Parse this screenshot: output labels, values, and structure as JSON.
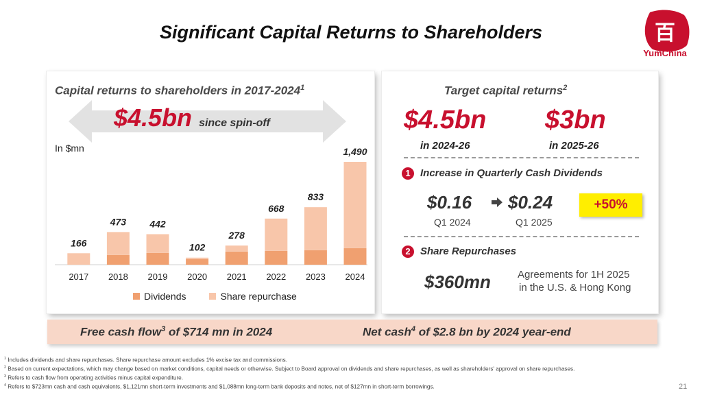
{
  "title": "Significant Capital Returns to Shareholders",
  "logo": {
    "text": "YumChina",
    "icon": "yum-china-seal-icon",
    "color": "#c8102e"
  },
  "left_panel": {
    "title": "Capital returns to shareholders in 2017-2024",
    "title_sup": "1",
    "total": "$4.5bn",
    "total_suffix": "since spin-off",
    "unit": "In $mn"
  },
  "chart_data": {
    "type": "bar",
    "stacked": true,
    "categories": [
      "2017",
      "2018",
      "2019",
      "2020",
      "2021",
      "2022",
      "2023",
      "2024"
    ],
    "totals": [
      166,
      473,
      442,
      102,
      278,
      668,
      833,
      1490
    ],
    "total_labels": [
      "166",
      "473",
      "442",
      "102",
      "278",
      "668",
      "833",
      "1,490"
    ],
    "series": [
      {
        "name": "Dividends",
        "color": "#f0a070",
        "values": [
          0,
          140,
          170,
          80,
          190,
          200,
          210,
          240
        ]
      },
      {
        "name": "Share repurchase",
        "color": "#f8c6aa",
        "values": [
          166,
          333,
          272,
          22,
          88,
          468,
          623,
          1250
        ]
      }
    ],
    "ylim": [
      0,
      1490
    ],
    "grid": false,
    "legend": "bottom"
  },
  "right_panel": {
    "title": "Target capital returns",
    "title_sup": "2",
    "target1_value": "$4.5bn",
    "target1_period": "in 2024-26",
    "target2_value": "$3bn",
    "target2_period": "in 2025-26",
    "item1_num": "1",
    "item1_label": "Increase in Quarterly Cash Dividends",
    "div_from": "$0.16",
    "div_from_period": "Q1 2024",
    "div_to": "$0.24",
    "div_to_period": "Q1 2025",
    "div_change": "+50%",
    "item2_num": "2",
    "item2_label": "Share Repurchases",
    "repurchase_value": "$360mn",
    "repurchase_note_line1": "Agreements for 1H 2025",
    "repurchase_note_line2": "in the U.S. & Hong Kong"
  },
  "bottom": {
    "fcf_pre": "Free cash flow",
    "fcf_sup": "3",
    "fcf_post": " of $714 mn in 2024",
    "net_pre": "Net cash",
    "net_sup": "4",
    "net_post": " of $2.8 bn by 2024 year-end"
  },
  "footnotes": [
    {
      "num": "1",
      "text": " Includes dividends and share repurchases. Share repurchase amount excludes 1% excise tax and commissions."
    },
    {
      "num": "2",
      "text": " Based on current expectations, which may change based on market conditions, capital needs or otherwise. Subject to Board approval on dividends and share repurchases, as well as shareholders' approval on share repurchases."
    },
    {
      "num": "3",
      "text": " Refers to cash flow from operating activities minus capital expenditure."
    },
    {
      "num": "4",
      "text": " Refers to $723mn cash and cash equivalents, $1,121mn short-term investments and $1,088mn long-term bank deposits and notes, net of $127mn in short-term borrowings."
    }
  ],
  "page_number": "21"
}
